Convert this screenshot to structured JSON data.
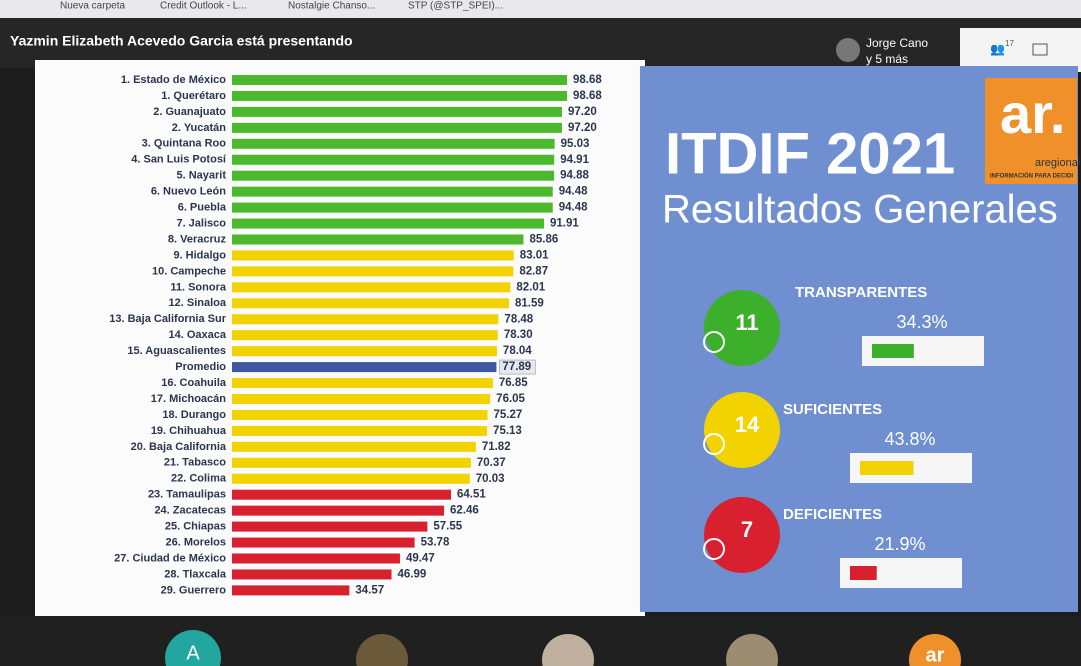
{
  "browser": {
    "bookmarks": [
      "Nueva carpeta",
      "Credit Outlook - L...",
      "Nostalgie Chanso...",
      "STP (@STP_SPEI)..."
    ]
  },
  "meeting": {
    "presenter": "Yazmin Elizabeth Acevedo Garcia está presentando",
    "participant": "Jorge Cano",
    "others": "y 5 más",
    "participants_count": "17",
    "bottom_avatar": "A",
    "bottom_logo": "ar"
  },
  "chart_data": {
    "type": "hbar",
    "categories": [
      "1. Estado de México",
      "1. Querétaro",
      "2. Guanajuato",
      "2. Yucatán",
      "3. Quintana Roo",
      "4. San Luis Potosí",
      "5. Nayarit",
      "6. Nuevo León",
      "6. Puebla",
      "7. Jalisco",
      "8. Veracruz",
      "9. Hidalgo",
      "10. Campeche",
      "11. Sonora",
      "12. Sinaloa",
      "13. Baja California Sur",
      "14. Oaxaca",
      "15. Aguascalientes",
      "Promedio",
      "16. Coahuila",
      "17. Michoacán",
      "18. Durango",
      "19. Chihuahua",
      "20. Baja California",
      "21. Tabasco",
      "22. Colima",
      "23. Tamaulipas",
      "24. Zacatecas",
      "25. Chiapas",
      "26. Morelos",
      "27. Ciudad de México",
      "28. Tlaxcala",
      "29. Guerrero"
    ],
    "values": [
      98.68,
      98.68,
      97.2,
      97.2,
      95.03,
      94.91,
      94.88,
      94.48,
      94.48,
      91.91,
      85.86,
      83.01,
      82.87,
      82.01,
      81.59,
      78.48,
      78.3,
      78.04,
      77.89,
      76.85,
      76.05,
      75.27,
      75.13,
      71.82,
      70.37,
      70.03,
      64.51,
      62.46,
      57.55,
      53.78,
      49.47,
      46.99,
      34.57
    ],
    "value_labels": [
      "98.68",
      "98.68",
      "97.20",
      "97.20",
      "95.03",
      "94.91",
      "94.88",
      "94.48",
      "94.48",
      "91.91",
      "85.86",
      "83.01",
      "82.87",
      "82.01",
      "81.59",
      "78.48",
      "78.30",
      "78.04",
      "77.89",
      "76.85",
      "76.05",
      "75.27",
      "75.13",
      "71.82",
      "70.37",
      "70.03",
      "64.51",
      "62.46",
      "57.55",
      "53.78",
      "49.47",
      "46.99",
      "34.57"
    ],
    "colors": [
      "#4cb82e",
      "#4cb82e",
      "#4cb82e",
      "#4cb82e",
      "#4cb82e",
      "#4cb82e",
      "#4cb82e",
      "#4cb82e",
      "#4cb82e",
      "#4cb82e",
      "#4cb82e",
      "#f2d200",
      "#f2d200",
      "#f2d200",
      "#f2d200",
      "#f2d200",
      "#f2d200",
      "#f2d200",
      "#3d57a0",
      "#f2d200",
      "#f2d200",
      "#f2d200",
      "#f2d200",
      "#f2d200",
      "#f2d200",
      "#f2d200",
      "#d9202f",
      "#d9202f",
      "#d9202f",
      "#d9202f",
      "#d9202f",
      "#d9202f",
      "#d9202f"
    ]
  },
  "panel": {
    "title": "ITDIF 2021",
    "subtitle": "Resultados Generales",
    "logo": "ar.",
    "logo_name": "aregional",
    "logo_tagline": "INFORMACIÓN PARA DECIDI",
    "summary": [
      {
        "name": "TRANSPARENTES",
        "count": "11",
        "percent": 34.3,
        "percent_label": "34.3%",
        "color": "#3cb02a"
      },
      {
        "name": "SUFICIENTES",
        "count": "14",
        "percent": 43.8,
        "percent_label": "43.8%",
        "color": "#f2d200"
      },
      {
        "name": "DEFICIENTES",
        "count": "7",
        "percent": 21.9,
        "percent_label": "21.9%",
        "color": "#d9202f"
      }
    ]
  }
}
